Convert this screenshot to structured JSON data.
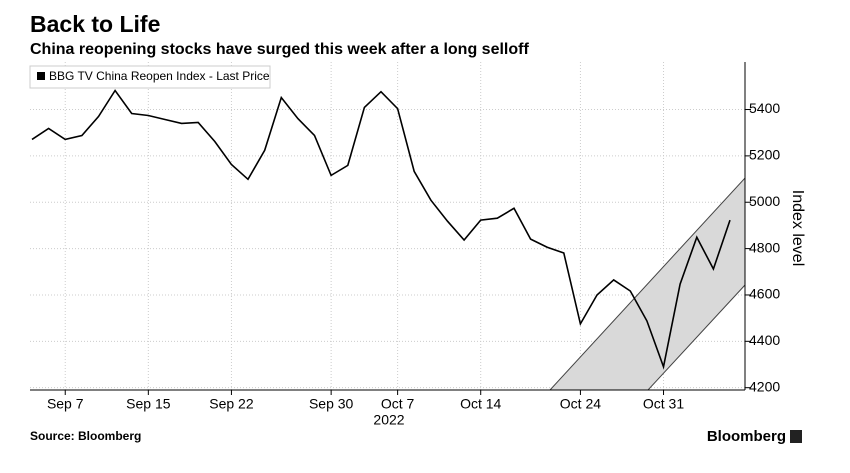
{
  "chart_data": {
    "type": "line",
    "title": "Back to Life",
    "subtitle": "China reopening stocks have surged this week after a long selloff",
    "source": "Source: Bloomberg",
    "brand": "Bloomberg",
    "y_axis_label": "Index level",
    "x_year_label": "2022",
    "categories": [
      null,
      null,
      "Sep 7",
      null,
      null,
      null,
      null,
      "Sep 15",
      null,
      null,
      null,
      null,
      "Sep 22",
      null,
      null,
      null,
      null,
      null,
      "Sep 30",
      null,
      null,
      null,
      "Oct 7",
      null,
      null,
      null,
      null,
      "Oct 14",
      null,
      null,
      null,
      null,
      null,
      "Oct 24",
      null,
      null,
      null,
      null,
      "Oct 31",
      null,
      null,
      null,
      null
    ],
    "series": [
      {
        "name": "BBG TV China Reopen Index - Last Price",
        "color": "#000000",
        "values": [
          5271,
          5318,
          5271,
          5288,
          5370,
          5482,
          5383,
          5374,
          5357,
          5340,
          5344,
          5262,
          5163,
          5099,
          5224,
          5452,
          5361,
          5288,
          5116,
          5159,
          5409,
          5477,
          5404,
          5133,
          5009,
          4918,
          4837,
          4923,
          4931,
          4974,
          4841,
          4806,
          4781,
          4475,
          4600,
          4665,
          4617,
          4488,
          4290,
          4647,
          4849,
          4712,
          4923
        ]
      }
    ],
    "ylim": [
      4190,
      5605
    ],
    "yticks": [
      4200,
      4400,
      4600,
      4800,
      5000,
      5200,
      5400
    ],
    "grid": true,
    "legend": "top-left"
  }
}
